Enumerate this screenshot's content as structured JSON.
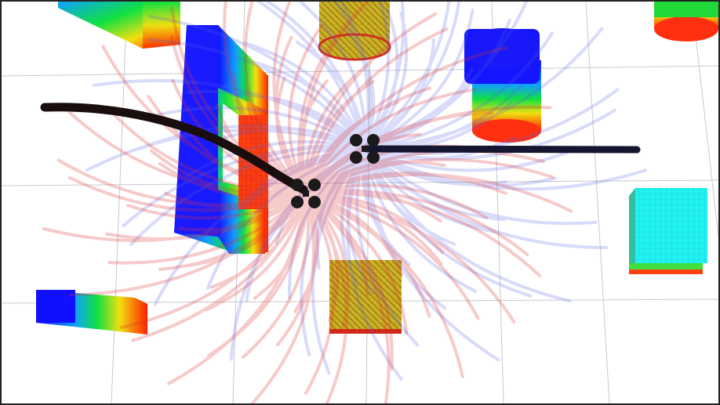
{
  "scene": {
    "background": "#ffffff",
    "grid_color": "#c9c9cf",
    "frame_color": "#222222",
    "drone_color": "#1a1a1a",
    "path_color": "#1a0d0d",
    "path2_color": "#151530"
  },
  "colors": {
    "fan_red": "#e03030",
    "fan_blue": "#5060e8",
    "height_low": "#1010ff",
    "height_mid": "#10e040",
    "height_high": "#ff2000",
    "cyan": "#20f0f0",
    "olive": "#b8b020"
  },
  "obstacles": [
    {
      "name": "rectangular-block",
      "kind": "box-gradient"
    },
    {
      "name": "u-shaped-wall",
      "kind": "wall-gradient"
    },
    {
      "name": "cylinder-olive",
      "kind": "cylinder"
    },
    {
      "name": "cylinder-blue-gradient",
      "kind": "cylinder"
    },
    {
      "name": "cylinder-top-right",
      "kind": "cylinder"
    },
    {
      "name": "cyan-cube",
      "kind": "box"
    },
    {
      "name": "olive-cube",
      "kind": "box"
    },
    {
      "name": "gradient-slab",
      "kind": "box-gradient"
    }
  ]
}
